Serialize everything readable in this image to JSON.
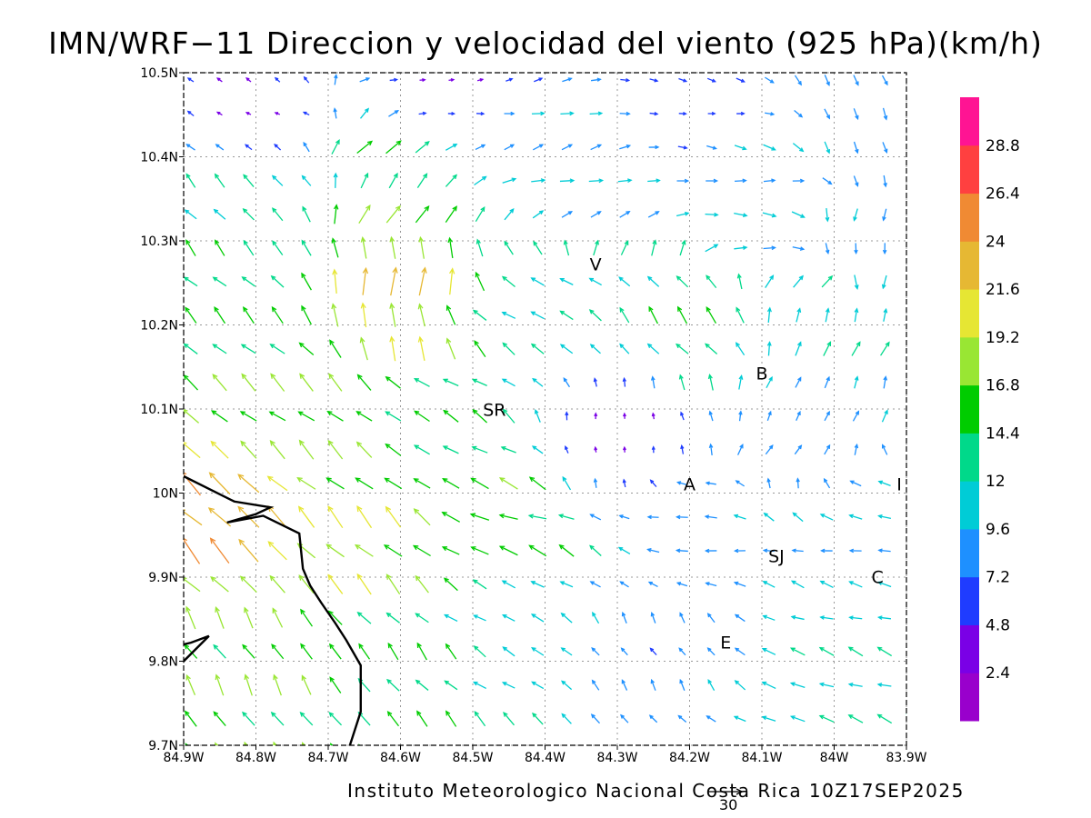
{
  "title": "IMN/WRF−11 Direccion y velocidad del viento (925 hPa)(km/h)",
  "credit": "Instituto Meteorologico Nacional Costa Rica  10Z17SEP2025",
  "reference_vector": {
    "label": "30",
    "value": 30
  },
  "map": {
    "lon_range": [
      -84.9,
      -83.9
    ],
    "lat_range": [
      9.7,
      10.5
    ],
    "grid": "dotted",
    "lon_ticks": [
      {
        "value": -84.9,
        "label": "84.9W"
      },
      {
        "value": -84.8,
        "label": "84.8W"
      },
      {
        "value": -84.7,
        "label": "84.7W"
      },
      {
        "value": -84.6,
        "label": "84.6W"
      },
      {
        "value": -84.5,
        "label": "84.5W"
      },
      {
        "value": -84.4,
        "label": "84.4W"
      },
      {
        "value": -84.3,
        "label": "84.3W"
      },
      {
        "value": -84.2,
        "label": "84.2W"
      },
      {
        "value": -84.1,
        "label": "84.1W"
      },
      {
        "value": -84.0,
        "label": "84W"
      },
      {
        "value": -83.9,
        "label": "83.9W"
      }
    ],
    "lat_ticks": [
      {
        "value": 10.5,
        "label": "10.5N"
      },
      {
        "value": 10.4,
        "label": "10.4N"
      },
      {
        "value": 10.3,
        "label": "10.3N"
      },
      {
        "value": 10.2,
        "label": "10.2N"
      },
      {
        "value": 10.1,
        "label": "10.1N"
      },
      {
        "value": 10.0,
        "label": "10N"
      },
      {
        "value": 9.9,
        "label": "9.9N"
      },
      {
        "value": 9.8,
        "label": "9.8N"
      },
      {
        "value": 9.7,
        "label": "9.7N"
      }
    ],
    "place_labels": [
      {
        "text": "V",
        "lon": -84.33,
        "lat": 10.265
      },
      {
        "text": "SR",
        "lon": -84.47,
        "lat": 10.092
      },
      {
        "text": "B",
        "lon": -84.1,
        "lat": 10.135
      },
      {
        "text": "A",
        "lon": -84.2,
        "lat": 10.003
      },
      {
        "text": "I",
        "lon": -83.91,
        "lat": 10.003
      },
      {
        "text": "SJ",
        "lon": -84.08,
        "lat": 9.918
      },
      {
        "text": "C",
        "lon": -83.94,
        "lat": 9.893
      },
      {
        "text": "E",
        "lon": -84.15,
        "lat": 9.815
      }
    ],
    "coastline": [
      [
        -84.9,
        10.02
      ],
      [
        -84.83,
        9.99
      ],
      [
        -84.78,
        9.983
      ],
      [
        -84.8,
        9.975
      ],
      [
        -84.84,
        9.965
      ],
      [
        -84.79,
        9.973
      ],
      [
        -84.74,
        9.952
      ],
      [
        -84.735,
        9.91
      ],
      [
        -84.725,
        9.89
      ],
      [
        -84.71,
        9.87
      ],
      [
        -84.69,
        9.845
      ],
      [
        -84.675,
        9.825
      ],
      [
        -84.655,
        9.795
      ],
      [
        -84.655,
        9.74
      ],
      [
        -84.67,
        9.7
      ]
    ],
    "coastline_2": [
      [
        -84.9,
        9.8
      ],
      [
        -84.865,
        9.83
      ],
      [
        -84.89,
        9.822
      ],
      [
        -84.9,
        9.82
      ]
    ]
  },
  "colorbar": {
    "colors": [
      "#9900cc",
      "#7a00e6",
      "#1f3cff",
      "#1e90ff",
      "#00ccd6",
      "#00d98a",
      "#00cc00",
      "#99e633",
      "#e6e633",
      "#e6b833",
      "#f08a33",
      "#ff4040",
      "#ff1493"
    ],
    "labels": [
      "2.4",
      "4.8",
      "7.2",
      "9.6",
      "12",
      "14.4",
      "16.8",
      "19.2",
      "21.6",
      "24",
      "26.4",
      "28.8"
    ]
  },
  "wind_field_regions": [
    {
      "lon": -84.8,
      "lat": 10.45,
      "speed": 4,
      "dir": 300
    },
    {
      "lon": -84.55,
      "lat": 10.47,
      "speed": 4,
      "dir": 90
    },
    {
      "lon": -84.2,
      "lat": 10.47,
      "speed": 6,
      "dir": 100
    },
    {
      "lon": -83.95,
      "lat": 10.45,
      "speed": 9,
      "dir": 160
    },
    {
      "lon": -84.82,
      "lat": 10.35,
      "speed": 13,
      "dir": 320
    },
    {
      "lon": -84.6,
      "lat": 10.4,
      "speed": 15,
      "dir": 40
    },
    {
      "lon": -84.35,
      "lat": 10.38,
      "speed": 10,
      "dir": 75
    },
    {
      "lon": -84.1,
      "lat": 10.35,
      "speed": 10,
      "dir": 95
    },
    {
      "lon": -83.95,
      "lat": 10.3,
      "speed": 9,
      "dir": 190
    },
    {
      "lon": -84.85,
      "lat": 10.22,
      "speed": 14,
      "dir": 315
    },
    {
      "lon": -84.6,
      "lat": 10.24,
      "speed": 21,
      "dir": 0
    },
    {
      "lon": -84.4,
      "lat": 10.22,
      "speed": 12,
      "dir": 300
    },
    {
      "lon": -84.2,
      "lat": 10.2,
      "speed": 14,
      "dir": 320
    },
    {
      "lon": -84.0,
      "lat": 10.2,
      "speed": 12,
      "dir": 20
    },
    {
      "lon": -84.8,
      "lat": 10.1,
      "speed": 16,
      "dir": 310
    },
    {
      "lon": -84.55,
      "lat": 10.08,
      "speed": 14,
      "dir": 300
    },
    {
      "lon": -84.3,
      "lat": 10.07,
      "speed": 4,
      "dir": 0
    },
    {
      "lon": -84.05,
      "lat": 10.08,
      "speed": 8,
      "dir": 30
    },
    {
      "lon": -84.85,
      "lat": 9.98,
      "speed": 24,
      "dir": 315
    },
    {
      "lon": -84.65,
      "lat": 9.95,
      "speed": 19,
      "dir": 315
    },
    {
      "lon": -84.45,
      "lat": 9.97,
      "speed": 16,
      "dir": 290
    },
    {
      "lon": -84.2,
      "lat": 9.95,
      "speed": 9,
      "dir": 270
    },
    {
      "lon": -83.95,
      "lat": 9.95,
      "speed": 10,
      "dir": 280
    },
    {
      "lon": -84.8,
      "lat": 9.8,
      "speed": 16,
      "dir": 330
    },
    {
      "lon": -84.6,
      "lat": 9.8,
      "speed": 14,
      "dir": 320
    },
    {
      "lon": -84.45,
      "lat": 9.85,
      "speed": 11,
      "dir": 300
    },
    {
      "lon": -84.25,
      "lat": 9.83,
      "speed": 8,
      "dir": 330
    },
    {
      "lon": -84.0,
      "lat": 9.78,
      "speed": 12,
      "dir": 290
    }
  ]
}
